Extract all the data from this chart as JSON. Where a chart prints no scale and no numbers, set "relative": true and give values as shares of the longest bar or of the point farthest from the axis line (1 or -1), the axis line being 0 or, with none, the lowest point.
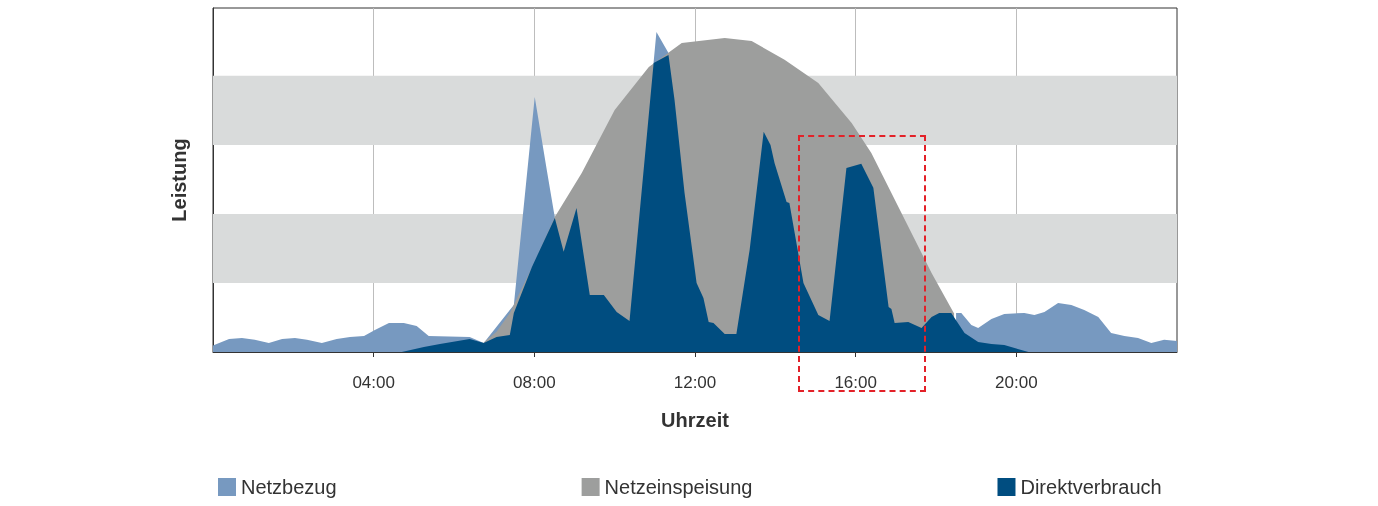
{
  "chart_data": {
    "type": "area",
    "relative": true,
    "xlabel": "Uhrzeit",
    "ylabel": "Leistung",
    "xlim": [
      0,
      24
    ],
    "xticks": [
      {
        "value": 4,
        "label": "04:00"
      },
      {
        "value": 8,
        "label": "08:00"
      },
      {
        "value": 12,
        "label": "12:00"
      },
      {
        "value": 16,
        "label": "16:00"
      },
      {
        "value": 20,
        "label": "20:00"
      }
    ],
    "grid": "x",
    "legend": "bottom",
    "bands": [
      {
        "axis": "y",
        "from": 0.216,
        "to": 0.431,
        "color": "#d9dbdb"
      },
      {
        "axis": "y",
        "from": 0.647,
        "to": 0.863,
        "color": "#d9dbdb"
      }
    ],
    "series": [
      {
        "name": "Netzbezug",
        "color": "#7799c0",
        "x": [
          0,
          0.4,
          0.72,
          1.04,
          1.39,
          1.72,
          2.04,
          2.34,
          2.71,
          3.08,
          3.41,
          3.76,
          4.03,
          4.38,
          4.75,
          5.07,
          5.37,
          6.39,
          6.74,
          7.49,
          8.01,
          8.31,
          8.51,
          9.0,
          10.97,
          11.04,
          11.34,
          12.0,
          18.5,
          18.63,
          18.88,
          19.05,
          19.38,
          19.7,
          20.2,
          20.45,
          20.7,
          21.04,
          21.37,
          21.69,
          22.04,
          22.36,
          22.69,
          23.03,
          23.36,
          23.68,
          24
        ],
        "values": [
          0.02,
          0.041,
          0.044,
          0.038,
          0.028,
          0.041,
          0.044,
          0.038,
          0.028,
          0.041,
          0.047,
          0.05,
          0.069,
          0.091,
          0.091,
          0.081,
          0.05,
          0.047,
          0.028,
          0.147,
          0.797,
          0.569,
          0.42,
          null,
          0.906,
          1,
          0.934,
          null,
          0.122,
          0.122,
          0.084,
          0.075,
          0.103,
          0.119,
          0.122,
          0.116,
          0.125,
          0.153,
          0.147,
          0.131,
          0.109,
          0.059,
          0.05,
          0.044,
          0.028,
          0.038,
          0.034
        ]
      },
      {
        "name": "Netzeinspeisung",
        "color": "#9d9e9d",
        "x": [
          6.74,
          7.06,
          7.39,
          8.0,
          8.51,
          9.18,
          10.0,
          10.85,
          11.67,
          12.74,
          13.41,
          14.23,
          15.07,
          15.9,
          16.39,
          17.14,
          17.89,
          18.45
        ],
        "values": [
          0.03,
          0.063,
          0.122,
          0.28,
          0.422,
          0.559,
          0.756,
          0.891,
          0.966,
          0.981,
          0.972,
          0.913,
          0.841,
          0.716,
          0.622,
          0.434,
          0.247,
          0.12
        ]
      },
      {
        "name": "Direktverbrauch",
        "color": "#004d80",
        "x": [
          0,
          4.7,
          5.25,
          5.65,
          6.39,
          6.74,
          7.06,
          7.39,
          7.49,
          7.94,
          8.51,
          8.73,
          9.05,
          9.38,
          9.73,
          10.05,
          10.37,
          10.97,
          11.34,
          11.49,
          11.74,
          12.04,
          12.21,
          12.34,
          12.46,
          12.74,
          13.03,
          13.36,
          13.71,
          13.88,
          13.98,
          14.28,
          14.35,
          14.7,
          15.07,
          15.35,
          15.77,
          16.14,
          16.44,
          16.82,
          16.89,
          16.97,
          17.31,
          17.64,
          17.89,
          18.08,
          18.38,
          18.71,
          19.05,
          19.38,
          19.7,
          20.3,
          24
        ],
        "values": [
          0,
          0,
          0.016,
          0.025,
          0.041,
          0.028,
          0.047,
          0.053,
          0.122,
          0.266,
          0.419,
          0.313,
          0.45,
          0.178,
          0.178,
          0.125,
          0.097,
          0.903,
          0.928,
          0.788,
          0.497,
          0.216,
          0.169,
          0.094,
          0.091,
          0.056,
          0.056,
          0.319,
          0.688,
          0.647,
          0.591,
          0.469,
          0.466,
          0.216,
          0.116,
          0.097,
          0.575,
          0.588,
          0.513,
          0.141,
          0.134,
          0.091,
          0.094,
          0.075,
          0.109,
          0.122,
          0.122,
          0.059,
          0.031,
          0.025,
          0.022,
          0,
          0
        ]
      }
    ]
  }
}
